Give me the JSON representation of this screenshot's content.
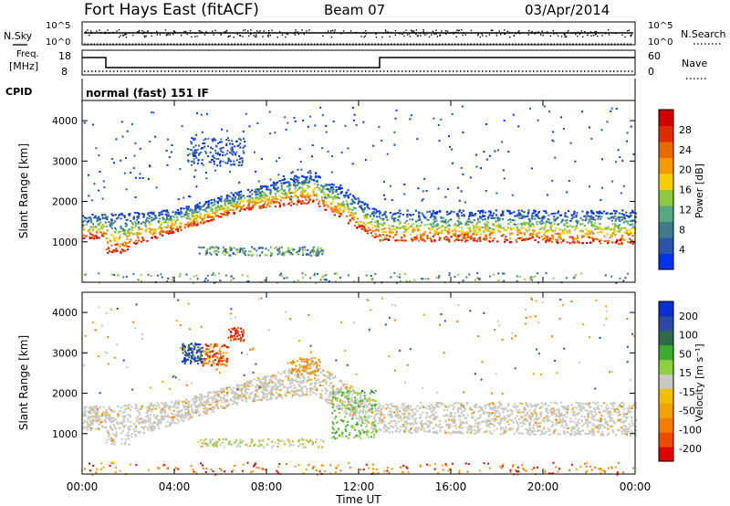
{
  "header": {
    "radar": "Fort Hays East (fitACF)",
    "beam": "Beam 07",
    "date": "03/Apr/2014"
  },
  "aux_panels": {
    "nsky_label": "N.Sky",
    "nsky_ticks": [
      "10^5",
      "10^0"
    ],
    "nsearch_label": "N.Search",
    "nsearch_ticks": [
      "10^5",
      "10^0"
    ],
    "freq_label": "Freq.",
    "freq_unit": "[MHz]",
    "freq_ticks": [
      "18",
      "8"
    ],
    "nave_label": "Nave",
    "nave_ticks": [
      "60",
      "0"
    ],
    "cpid_label": "CPID",
    "cpid_value": "normal (fast) 151 IF"
  },
  "colors": {
    "power": [
      "#0033ee",
      "#2b55a8",
      "#3d7a8a",
      "#55a880",
      "#8cc840",
      "#f7d000",
      "#f39b00",
      "#ea6a00",
      "#e02c00",
      "#d40000"
    ],
    "velocity": [
      "#e00000",
      "#ee4a00",
      "#f47b00",
      "#f2a200",
      "#f0c000",
      "#c8c8c0",
      "#8cd040",
      "#3faa30",
      "#2e6b4a",
      "#2b4aa0",
      "#0a2fd0"
    ],
    "velocity_gray": "#c8c8c0"
  },
  "chart_data": [
    {
      "type": "heatmap",
      "panel": "power",
      "ylabel": "Slant Range [km]",
      "ylim": [
        0,
        4500
      ],
      "yticks": [
        "1000",
        "2000",
        "3000",
        "4000"
      ],
      "xlim": [
        0,
        24
      ],
      "colorbar": {
        "label": "Power [dB]",
        "range": [
          0,
          32
        ],
        "ticks": [
          "4",
          "8",
          "12",
          "16",
          "20",
          "24",
          "28"
        ]
      },
      "features": [
        {
          "t": [
            0,
            1
          ],
          "range_km": [
            1100,
            1700
          ],
          "power_db": [
            4,
            28
          ]
        },
        {
          "t": [
            1,
            13
          ],
          "range_km": [
            750,
            2800
          ],
          "power_db": [
            4,
            28
          ]
        },
        {
          "t": [
            13,
            24
          ],
          "range_km": [
            950,
            1800
          ],
          "power_db": [
            4,
            28
          ]
        },
        {
          "t": [
            4.5,
            7
          ],
          "range_km": [
            2900,
            3600
          ],
          "power_db": [
            2,
            10
          ]
        },
        {
          "t": [
            5,
            10.5
          ],
          "range_km": [
            650,
            900
          ],
          "power_db": [
            4,
            16
          ]
        }
      ]
    },
    {
      "type": "heatmap",
      "panel": "velocity",
      "ylabel": "Slant Range [km]",
      "ylim": [
        0,
        4500
      ],
      "yticks": [
        "1000",
        "2000",
        "3000",
        "4000"
      ],
      "xlim": [
        0,
        24
      ],
      "xticks": [
        "00:00",
        "04:00",
        "08:00",
        "12:00",
        "16:00",
        "20:00",
        "00:00"
      ],
      "xlabel": "Time UT",
      "colorbar": {
        "label": "Velocity [m s⁻¹]",
        "range": [
          -250,
          250
        ],
        "ticks": [
          "200",
          "100",
          "50",
          "15",
          "-15",
          "-50",
          "-100",
          "-200"
        ]
      },
      "features": [
        {
          "t": [
            0,
            24
          ],
          "range_km": [
            750,
            1800
          ],
          "velocity_ms": [
            -15,
            15
          ]
        },
        {
          "t": [
            4.3,
            5.2
          ],
          "range_km": [
            2700,
            3300
          ],
          "velocity_ms": [
            100,
            250
          ]
        },
        {
          "t": [
            5.2,
            6.3
          ],
          "range_km": [
            2700,
            3200
          ],
          "velocity_ms": [
            -200,
            -50
          ]
        },
        {
          "t": [
            10.8,
            12.8
          ],
          "range_km": [
            900,
            2100
          ],
          "velocity_ms": [
            15,
            60
          ]
        },
        {
          "t": [
            9,
            10.3
          ],
          "range_km": [
            2500,
            2900
          ],
          "velocity_ms": [
            -80,
            -30
          ]
        }
      ]
    }
  ]
}
